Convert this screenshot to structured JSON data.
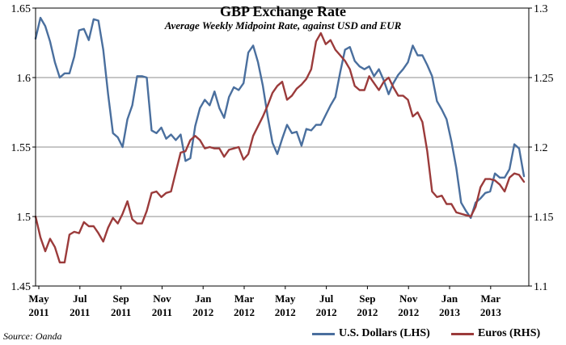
{
  "chart_data": {
    "type": "line",
    "title": "GBP Exchange Rate",
    "subtitle": "Average Weekly Midpoint Rate, against USD and EUR",
    "source": "Source: Oanda",
    "x_tick_labels": [
      [
        "May",
        "2011"
      ],
      [
        "Jul",
        "2011"
      ],
      [
        "Sep",
        "2011"
      ],
      [
        "Nov",
        "2011"
      ],
      [
        "Jan",
        "2012"
      ],
      [
        "Mar",
        "2012"
      ],
      [
        "May",
        "2012"
      ],
      [
        "Jul",
        "2012"
      ],
      [
        "Sep",
        "2012"
      ],
      [
        "Nov",
        "2012"
      ],
      [
        "Jan",
        "2013"
      ],
      [
        "Mar",
        "2013"
      ]
    ],
    "y_left": {
      "label": "",
      "ticks": [
        "1.45",
        "1.5",
        "1.55",
        "1.6",
        "1.65"
      ],
      "lim": [
        1.45,
        1.65
      ]
    },
    "y_right": {
      "label": "",
      "ticks": [
        "1.1",
        "1.15",
        "1.2",
        "1.25",
        "1.3"
      ],
      "lim": [
        1.1,
        1.3
      ]
    },
    "x_range_weeks": [
      0,
      102
    ],
    "grid": "horizontal",
    "legend_position": "bottom-right",
    "series": [
      {
        "name": "U.S. Dollars (LHS)",
        "axis": "left",
        "color": "#4a6f9e",
        "x": [
          0,
          1,
          2,
          3,
          4,
          5,
          6,
          7,
          8,
          9,
          10,
          11,
          12,
          13,
          14,
          15,
          16,
          17,
          18,
          19,
          20,
          21,
          22,
          23,
          24,
          25,
          26,
          27,
          28,
          29,
          30,
          31,
          32,
          33,
          34,
          35,
          36,
          37,
          38,
          39,
          40,
          41,
          42,
          43,
          44,
          45,
          46,
          47,
          48,
          49,
          50,
          51,
          52,
          53,
          54,
          55,
          56,
          57,
          58,
          59,
          60,
          61,
          62,
          63,
          64,
          65,
          66,
          67,
          68,
          69,
          70,
          71,
          72,
          73,
          74,
          75,
          76,
          77,
          78,
          79,
          80,
          81,
          82,
          83,
          84,
          85,
          86,
          87,
          88,
          89,
          90,
          91,
          92,
          93,
          94,
          95,
          96,
          97,
          98,
          99,
          100,
          101
        ],
        "values": [
          1.628,
          1.643,
          1.637,
          1.626,
          1.611,
          1.6,
          1.603,
          1.603,
          1.615,
          1.634,
          1.635,
          1.627,
          1.642,
          1.641,
          1.62,
          1.588,
          1.56,
          1.557,
          1.55,
          1.57,
          1.58,
          1.601,
          1.601,
          1.6,
          1.562,
          1.56,
          1.564,
          1.556,
          1.559,
          1.555,
          1.559,
          1.54,
          1.542,
          1.565,
          1.578,
          1.584,
          1.58,
          1.59,
          1.578,
          1.571,
          1.586,
          1.593,
          1.591,
          1.596,
          1.618,
          1.623,
          1.611,
          1.594,
          1.572,
          1.553,
          1.545,
          1.556,
          1.566,
          1.56,
          1.561,
          1.551,
          1.563,
          1.562,
          1.566,
          1.566,
          1.573,
          1.58,
          1.586,
          1.604,
          1.62,
          1.622,
          1.612,
          1.608,
          1.606,
          1.608,
          1.601,
          1.606,
          1.598,
          1.588,
          1.596,
          1.602,
          1.606,
          1.611,
          1.623,
          1.616,
          1.616,
          1.609,
          1.601,
          1.583,
          1.577,
          1.57,
          1.554,
          1.535,
          1.51,
          1.504,
          1.499,
          1.51,
          1.513,
          1.517,
          1.518,
          1.531,
          1.528,
          1.528,
          1.534,
          1.552,
          1.549,
          1.529
        ]
      },
      {
        "name": "Euros (RHS)",
        "axis": "right",
        "color": "#9b3b3b",
        "x": [
          0,
          1,
          2,
          3,
          4,
          5,
          6,
          7,
          8,
          9,
          10,
          11,
          12,
          13,
          14,
          15,
          16,
          17,
          18,
          19,
          20,
          21,
          22,
          23,
          24,
          25,
          26,
          27,
          28,
          29,
          30,
          31,
          32,
          33,
          34,
          35,
          36,
          37,
          38,
          39,
          40,
          41,
          42,
          43,
          44,
          45,
          46,
          47,
          48,
          49,
          50,
          51,
          52,
          53,
          54,
          55,
          56,
          57,
          58,
          59,
          60,
          61,
          62,
          63,
          64,
          65,
          66,
          67,
          68,
          69,
          70,
          71,
          72,
          73,
          74,
          75,
          76,
          77,
          78,
          79,
          80,
          81,
          82,
          83,
          84,
          85,
          86,
          87,
          88,
          89,
          90,
          91,
          92,
          93,
          94,
          95,
          96,
          97,
          98,
          99,
          100,
          101
        ],
        "values": [
          1.15,
          1.135,
          1.125,
          1.134,
          1.128,
          1.117,
          1.117,
          1.137,
          1.139,
          1.138,
          1.146,
          1.143,
          1.143,
          1.138,
          1.132,
          1.142,
          1.149,
          1.145,
          1.152,
          1.161,
          1.148,
          1.145,
          1.145,
          1.154,
          1.167,
          1.168,
          1.164,
          1.167,
          1.168,
          1.182,
          1.196,
          1.197,
          1.205,
          1.208,
          1.205,
          1.199,
          1.2,
          1.199,
          1.199,
          1.193,
          1.198,
          1.199,
          1.2,
          1.191,
          1.195,
          1.208,
          1.215,
          1.222,
          1.23,
          1.239,
          1.244,
          1.247,
          1.234,
          1.237,
          1.242,
          1.245,
          1.249,
          1.256,
          1.276,
          1.282,
          1.274,
          1.277,
          1.27,
          1.266,
          1.262,
          1.256,
          1.244,
          1.241,
          1.241,
          1.251,
          1.246,
          1.241,
          1.247,
          1.25,
          1.243,
          1.237,
          1.237,
          1.234,
          1.222,
          1.225,
          1.218,
          1.197,
          1.168,
          1.164,
          1.165,
          1.159,
          1.159,
          1.153,
          1.152,
          1.151,
          1.15,
          1.157,
          1.171,
          1.177,
          1.177,
          1.176,
          1.173,
          1.168,
          1.178,
          1.181,
          1.18,
          1.175
        ]
      }
    ]
  }
}
